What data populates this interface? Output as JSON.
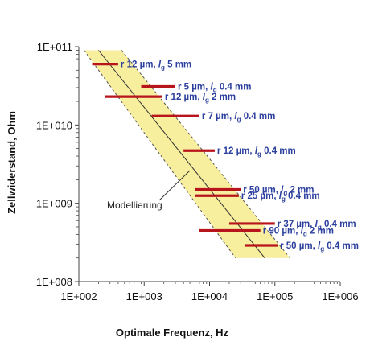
{
  "chart_data": {
    "type": "scatter",
    "xlabel": "Optimale Frequenz, Hz",
    "ylabel": "Zellwiderstand, Ohm",
    "xscale": "log",
    "yscale": "log",
    "xlim": [
      100,
      1000000
    ],
    "ylim": [
      100000000,
      100000000000
    ],
    "xticks": [
      "1E+002",
      "1E+003",
      "1E+004",
      "1E+005",
      "1E+006"
    ],
    "yticks": [
      "1E+008",
      "1E+009",
      "1E+010",
      "1E+011"
    ],
    "grid": false,
    "colors": {
      "band": "#f7ee9e",
      "measurement": "#b8141b",
      "annotation": "#2b3f9e",
      "model": "#333333"
    },
    "model": {
      "label": "Modellierung",
      "line": [
        {
          "x": 200,
          "y": 90000000000
        },
        {
          "x": 70000,
          "y": 200000000
        }
      ],
      "band_upper": [
        {
          "x": 450,
          "y": 90000000000
        },
        {
          "x": 170000,
          "y": 200000000
        }
      ],
      "band_lower": [
        {
          "x": 120,
          "y": 90000000000
        },
        {
          "x": 25000,
          "y": 200000000
        }
      ]
    },
    "measurements": [
      {
        "label": "r 12 µm, lg 5 mm",
        "r": "12 µm",
        "lg": "5 mm",
        "y": 60000000000,
        "x_from": 160,
        "x_to": 400
      },
      {
        "label": "r 5 µm, lg 0.4 mm",
        "r": "5 µm",
        "lg": "0.4 mm",
        "y": 31000000000,
        "x_from": 900,
        "x_to": 3000
      },
      {
        "label": "r 12 µm, lg 2 mm",
        "r": "12 µm",
        "lg": "2 mm",
        "y": 23000000000,
        "x_from": 250,
        "x_to": 1900
      },
      {
        "label": "r 7 µm, lg 0.4 mm",
        "r": "7 µm",
        "lg": "0.4 mm",
        "y": 13000000000,
        "x_from": 1300,
        "x_to": 7000
      },
      {
        "label": "r 12 µm, lg 0.4 mm",
        "r": "12 µm",
        "lg": "0.4 mm",
        "y": 4700000000,
        "x_from": 4000,
        "x_to": 12000
      },
      {
        "label": "r 50 µm, lg 2 mm",
        "r": "50 µm",
        "lg": "2 mm",
        "y": 1500000000,
        "x_from": 6000,
        "x_to": 30000
      },
      {
        "label": "r 25 µm, lg 0.4 mm",
        "r": "25 µm",
        "lg": "0.4 mm",
        "y": 1250000000,
        "x_from": 6000,
        "x_to": 28000
      },
      {
        "label": "r 37 µm, lg 0.4 mm",
        "r": "37 µm",
        "lg": "0.4 mm",
        "y": 550000000,
        "x_from": 20000,
        "x_to": 100000
      },
      {
        "label": "r 90 µm, lg 2 mm",
        "r": "90 µm",
        "lg": "2 mm",
        "y": 450000000,
        "x_from": 7000,
        "x_to": 60000
      },
      {
        "label": "r 50 µm, lg 0.4 mm",
        "r": "50 µm",
        "lg": "0.4 mm",
        "y": 290000000,
        "x_from": 35000,
        "x_to": 110000
      }
    ]
  }
}
